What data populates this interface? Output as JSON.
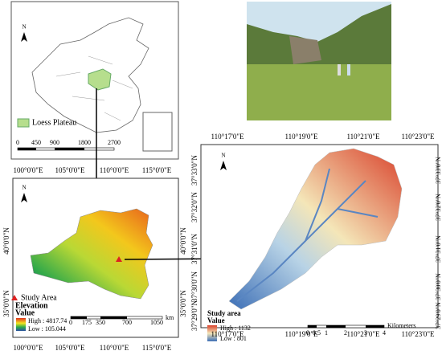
{
  "overview_map": {
    "north": "N",
    "legend": "Loess Plateau",
    "scale": [
      "0",
      "450",
      "900",
      "1800",
      "2700"
    ]
  },
  "regional_map": {
    "lon_labels": [
      "100°0'0\"E",
      "105°0'0\"E",
      "110°0'0\"E",
      "115°0'0\"E"
    ],
    "lat_labels": [
      "40°0'0\"N",
      "35°0'0\"N"
    ],
    "north": "N",
    "study_area": "Study Area",
    "legend_title": "Elevation",
    "legend_subtitle": "Value",
    "high": "High : 4817.74",
    "low": "Low : 105.044",
    "scale": [
      "0",
      "175",
      "350",
      "700",
      "1050"
    ],
    "scale_unit": "km"
  },
  "study_map": {
    "lon_labels": [
      "110°17'0\"E",
      "110°19'0\"E",
      "110°21'0\"E",
      "110°23'0\"E"
    ],
    "lat_labels": [
      "37°33'0\"N",
      "37°32'0\"N",
      "37°31'0\"N",
      "37°30'0\"N",
      "37°29'0\"N"
    ],
    "north": "N",
    "legend_title": "Study area",
    "legend_subtitle": "Value",
    "high": "High : 1132",
    "low": "Low : 801",
    "scale": [
      "0",
      "0.5",
      "1",
      "2",
      "3",
      "4"
    ],
    "scale_unit": "Kilometers"
  }
}
